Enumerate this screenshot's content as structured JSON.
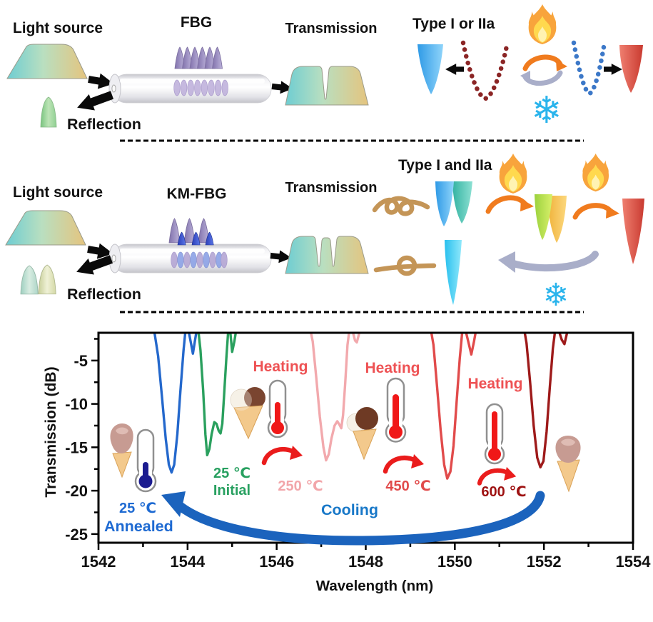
{
  "figure": {
    "row1": {
      "light_source": "Light source",
      "device": "FBG",
      "transmission": "Transmission",
      "reflection": "Reflection",
      "type": "Type I or IIa"
    },
    "row2": {
      "light_source": "Light source",
      "device": "KM-FBG",
      "transmission": "Transmission",
      "reflection": "Reflection",
      "type": "Type I and IIa"
    }
  },
  "chart": {
    "xlabel": "Wavelength (nm)",
    "ylabel": "Transmission (dB)",
    "annotations": {
      "heating1": "Heating",
      "heating2": "Heating",
      "heating3": "Heating",
      "cooling": "Cooling",
      "initial_temp": "25 ℃",
      "initial_label": "Initial",
      "t250": "250 ℃",
      "t450": "450 ℃",
      "t600": "600 ℃",
      "annealed_temp": "25 ℃",
      "annealed_label": "Annealed"
    }
  },
  "chart_data": {
    "type": "line",
    "title": "",
    "xlabel": "Wavelength (nm)",
    "ylabel": "Transmission (dB)",
    "xlim": [
      1542,
      1554
    ],
    "ylim": [
      -26,
      -1.8
    ],
    "x_ticks": [
      1542,
      1544,
      1546,
      1548,
      1550,
      1552,
      1554
    ],
    "x_minor_ticks": [
      1543,
      1545,
      1547,
      1549,
      1551,
      1553
    ],
    "y_ticks": [
      -5,
      -10,
      -15,
      -20,
      -25
    ],
    "y_minor_ticks": [
      -2.5,
      -7.5,
      -12.5,
      -17.5,
      -22.5
    ],
    "grid": false,
    "legend": false,
    "series": [
      {
        "id": "annealed",
        "name": "25 ℃ Annealed",
        "color": "#2468cc",
        "points": [
          [
            1543.24,
            -1.2
          ],
          [
            1543.34,
            -4.5
          ],
          [
            1543.43,
            -9.5
          ],
          [
            1543.51,
            -14
          ],
          [
            1543.58,
            -17
          ],
          [
            1543.64,
            -17.9
          ],
          [
            1543.7,
            -17
          ],
          [
            1543.77,
            -13.5
          ],
          [
            1543.84,
            -8.5
          ],
          [
            1543.91,
            -3.8
          ],
          [
            1543.96,
            -1.2
          ],
          [
            1544.02,
            -1.5
          ],
          [
            1544.08,
            -3.1
          ],
          [
            1544.12,
            -4.2
          ],
          [
            1544.17,
            -2.6
          ],
          [
            1544.22,
            -1
          ],
          [
            1544.25,
            -0.5
          ]
        ]
      },
      {
        "id": "initial",
        "name": "25 ℃ Initial",
        "color": "#2aa05e",
        "points": [
          [
            1544.23,
            -1
          ],
          [
            1544.29,
            -3.8
          ],
          [
            1544.35,
            -8.5
          ],
          [
            1544.4,
            -13.5
          ],
          [
            1544.44,
            -15.9
          ],
          [
            1544.49,
            -15.2
          ],
          [
            1544.54,
            -13.5
          ],
          [
            1544.6,
            -12.1
          ],
          [
            1544.65,
            -12.3
          ],
          [
            1544.7,
            -13.1
          ],
          [
            1544.74,
            -13.4
          ],
          [
            1544.78,
            -12.3
          ],
          [
            1544.82,
            -9
          ],
          [
            1544.87,
            -4.8
          ],
          [
            1544.91,
            -1.8
          ],
          [
            1544.96,
            -1.8
          ],
          [
            1545.0,
            -4.0
          ],
          [
            1545.05,
            -2.8
          ],
          [
            1545.1,
            -1.2
          ],
          [
            1545.14,
            -0.5
          ]
        ]
      },
      {
        "id": "t250",
        "name": "250 ℃",
        "color": "#f2a9ad",
        "points": [
          [
            1546.73,
            -0.8
          ],
          [
            1546.81,
            -2.8
          ],
          [
            1546.89,
            -7
          ],
          [
            1546.97,
            -11.5
          ],
          [
            1547.05,
            -15
          ],
          [
            1547.11,
            -16.5
          ],
          [
            1547.17,
            -15.8
          ],
          [
            1547.23,
            -14
          ],
          [
            1547.3,
            -12.5
          ],
          [
            1547.36,
            -12.0
          ],
          [
            1547.41,
            -12.4
          ],
          [
            1547.45,
            -12.8
          ],
          [
            1547.49,
            -11.3
          ],
          [
            1547.54,
            -7.5
          ],
          [
            1547.59,
            -3.2
          ],
          [
            1547.64,
            -1.2
          ],
          [
            1547.7,
            -1.5
          ],
          [
            1547.76,
            -2.7
          ],
          [
            1547.8,
            -2.9
          ],
          [
            1547.86,
            -1.7
          ],
          [
            1547.91,
            -0.7
          ]
        ]
      },
      {
        "id": "t450",
        "name": "450 ℃",
        "color": "#e14b4b",
        "points": [
          [
            1549.44,
            -0.8
          ],
          [
            1549.52,
            -3.2
          ],
          [
            1549.6,
            -8
          ],
          [
            1549.68,
            -13
          ],
          [
            1549.76,
            -17
          ],
          [
            1549.83,
            -18.6
          ],
          [
            1549.9,
            -17.8
          ],
          [
            1549.97,
            -14.8
          ],
          [
            1550.04,
            -9.8
          ],
          [
            1550.11,
            -4.8
          ],
          [
            1550.17,
            -1.5
          ],
          [
            1550.24,
            -1.5
          ],
          [
            1550.31,
            -3
          ],
          [
            1550.37,
            -4.3
          ],
          [
            1550.43,
            -2.8
          ],
          [
            1550.49,
            -1.1
          ],
          [
            1550.53,
            -0.5
          ]
        ]
      },
      {
        "id": "t600",
        "name": "600 ℃",
        "color": "#9e1a1a",
        "points": [
          [
            1551.53,
            -0.6
          ],
          [
            1551.61,
            -3
          ],
          [
            1551.69,
            -7.5
          ],
          [
            1551.77,
            -12.5
          ],
          [
            1551.85,
            -16.2
          ],
          [
            1551.92,
            -17.3
          ],
          [
            1551.99,
            -16.6
          ],
          [
            1552.06,
            -13.2
          ],
          [
            1552.13,
            -8.2
          ],
          [
            1552.2,
            -3.6
          ],
          [
            1552.26,
            -1.2
          ],
          [
            1552.33,
            -1.5
          ],
          [
            1552.4,
            -2.6
          ],
          [
            1552.46,
            -3.1
          ],
          [
            1552.52,
            -1.8
          ],
          [
            1552.58,
            -0.7
          ]
        ]
      }
    ]
  },
  "colors": {
    "heating_label": "#ee5254",
    "cooling_label": "#1878c8",
    "annealed_label": "#1e6ad2",
    "initial_label": "#28a060",
    "t250_label": "#f2a6aa",
    "t450_label": "#e14b4b",
    "t600_label": "#9e1212",
    "flame_orange": "#f8a43c",
    "snowflake_cyan": "#2ab4ec",
    "cooling_arrow": "#1b63bd"
  }
}
